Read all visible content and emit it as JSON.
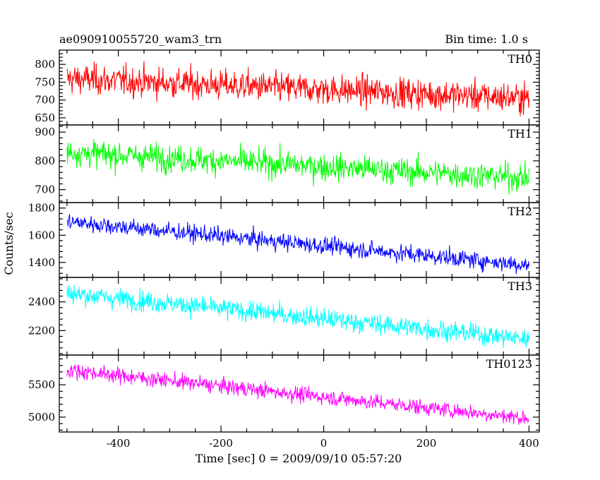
{
  "header": {
    "title": "ae090910055720_wam3_trn",
    "bin_time": "Bin time: 1.0 s"
  },
  "chart_data": {
    "type": "line",
    "title": "ae090910055720_wam3_trn",
    "xlabel": "Time [sec] 0 = 2009/09/10 05:57:20",
    "ylabel": "Counts/sec",
    "xlim": [
      -515,
      420
    ],
    "x_ticks": [
      -400,
      -200,
      0,
      200,
      400
    ],
    "x_range": [
      -500,
      400
    ],
    "x_step": 1,
    "grid": false,
    "panels": [
      {
        "name": "TH0",
        "color": "#ff0000",
        "ylim": [
          630,
          840
        ],
        "y_ticks": [
          650,
          700,
          750,
          800
        ],
        "trend": {
          "x": [
            -500,
            400
          ],
          "y": [
            760,
            705
          ]
        },
        "noise_sd": 30
      },
      {
        "name": "TH1",
        "color": "#00ff00",
        "ylim": [
          655,
          925
        ],
        "y_ticks": [
          700,
          800,
          900
        ],
        "trend": {
          "x": [
            -500,
            400
          ],
          "y": [
            830,
            740
          ]
        },
        "noise_sd": 33
      },
      {
        "name": "TH2",
        "color": "#0000ff",
        "ylim": [
          1290,
          1840
        ],
        "y_ticks": [
          1400,
          1600,
          1800
        ],
        "trend": {
          "x": [
            -500,
            400
          ],
          "y": [
            1700,
            1380
          ]
        },
        "noise_sd": 45
      },
      {
        "name": "TH3",
        "color": "#00ffff",
        "ylim": [
          2030,
          2570
        ],
        "y_ticks": [
          2200,
          2400
        ],
        "trend": {
          "x": [
            -500,
            400
          ],
          "y": [
            2460,
            2140
          ]
        },
        "noise_sd": 50
      },
      {
        "name": "TH0123",
        "color": "#ff00ff",
        "ylim": [
          4770,
          5960
        ],
        "y_ticks": [
          5000,
          5500
        ],
        "trend": {
          "x": [
            -500,
            400
          ],
          "y": [
            5730,
            4980
          ]
        },
        "noise_sd": 85
      }
    ]
  }
}
